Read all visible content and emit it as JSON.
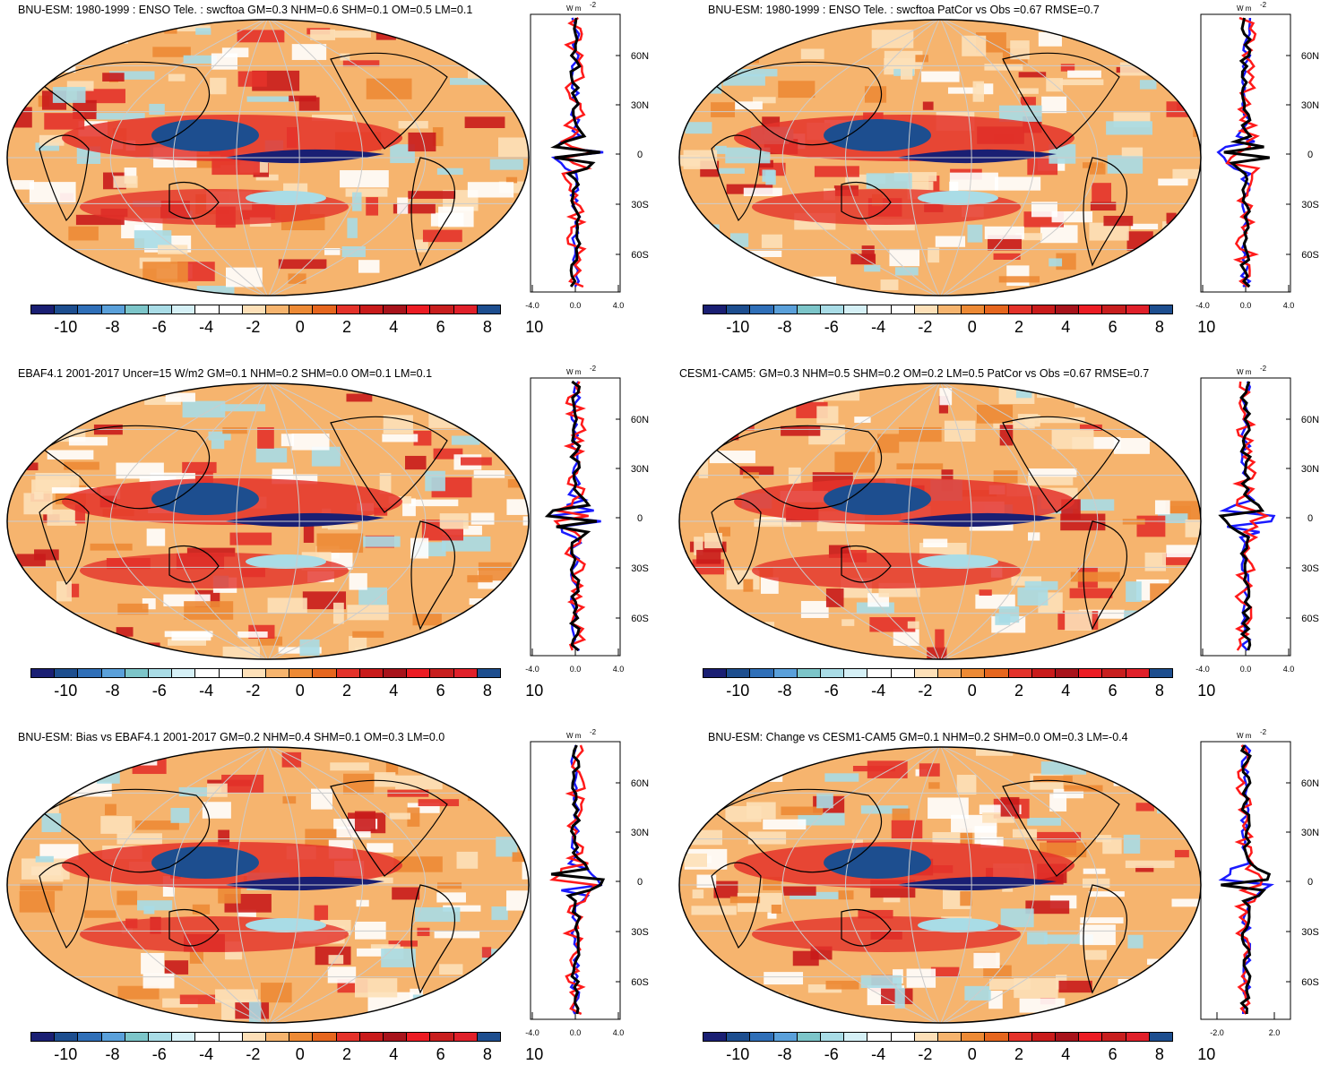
{
  "colorbar": {
    "colors": [
      "#1a1f73",
      "#1d4e8f",
      "#2f6fb8",
      "#5aa0da",
      "#7cc5c9",
      "#a9dce6",
      "#d5f0f6",
      "#ffffff",
      "#ffffff",
      "#fde0b8",
      "#f6b46e",
      "#ed8a35",
      "#e6661e",
      "#e4322a",
      "#c91b1b",
      "#a8131b",
      "#ec1c24",
      "#c81e1e",
      "#e0202a",
      "#1d4e8f"
    ],
    "labels": [
      "-10",
      "-8",
      "-6",
      "-4",
      "-2",
      "0",
      "2",
      "4",
      "6",
      "8",
      "10"
    ]
  },
  "profile_axes": {
    "unit": "W m",
    "unit_sup": "-2",
    "lat_labels": [
      "60N",
      "30N",
      "0",
      "30S",
      "60S"
    ],
    "xticks_default": [
      "-4.0",
      "0.0",
      "4.0"
    ],
    "xticks_alt": [
      "-2.0",
      "2.0"
    ]
  },
  "legend_colors": {
    "model": "#1a1aff",
    "obs": "#000000",
    "diff": "#ff1a1a"
  },
  "panels": [
    {
      "id": "p1",
      "title": "BNU-ESM: 1980-1999 : ENSO Tele. : swcftoa GM=0.3 NHM=0.6 SHM=0.1 OM=0.5 LM=0.1",
      "xticks": "default"
    },
    {
      "id": "p2",
      "title": "BNU-ESM: 1980-1999 : ENSO Tele. : swcftoa PatCor vs Obs =0.67 RMSE=0.7",
      "xticks": "default"
    },
    {
      "id": "p3",
      "title": "EBAF4.1 2001-2017 Uncer=15 W/m2 GM=0.1 NHM=0.2 SHM=0.0 OM=0.1 LM=0.1",
      "xticks": "default"
    },
    {
      "id": "p4",
      "title": "CESM1-CAM5: GM=0.3 NHM=0.5 SHM=0.2 OM=0.2 LM=0.5 PatCor vs Obs =0.67 RMSE=0.7",
      "xticks": "default"
    },
    {
      "id": "p5",
      "title": "BNU-ESM: Bias vs EBAF4.1 2001-2017 GM=0.2 NHM=0.4 SHM=0.1 OM=0.3 LM=0.0",
      "xticks": "default"
    },
    {
      "id": "p6",
      "title": "BNU-ESM: Change vs CESM1-CAM5 GM=0.1 NHM=0.2 SHM=0.0 OM=0.3 LM=-0.4",
      "xticks": "alt"
    }
  ]
}
